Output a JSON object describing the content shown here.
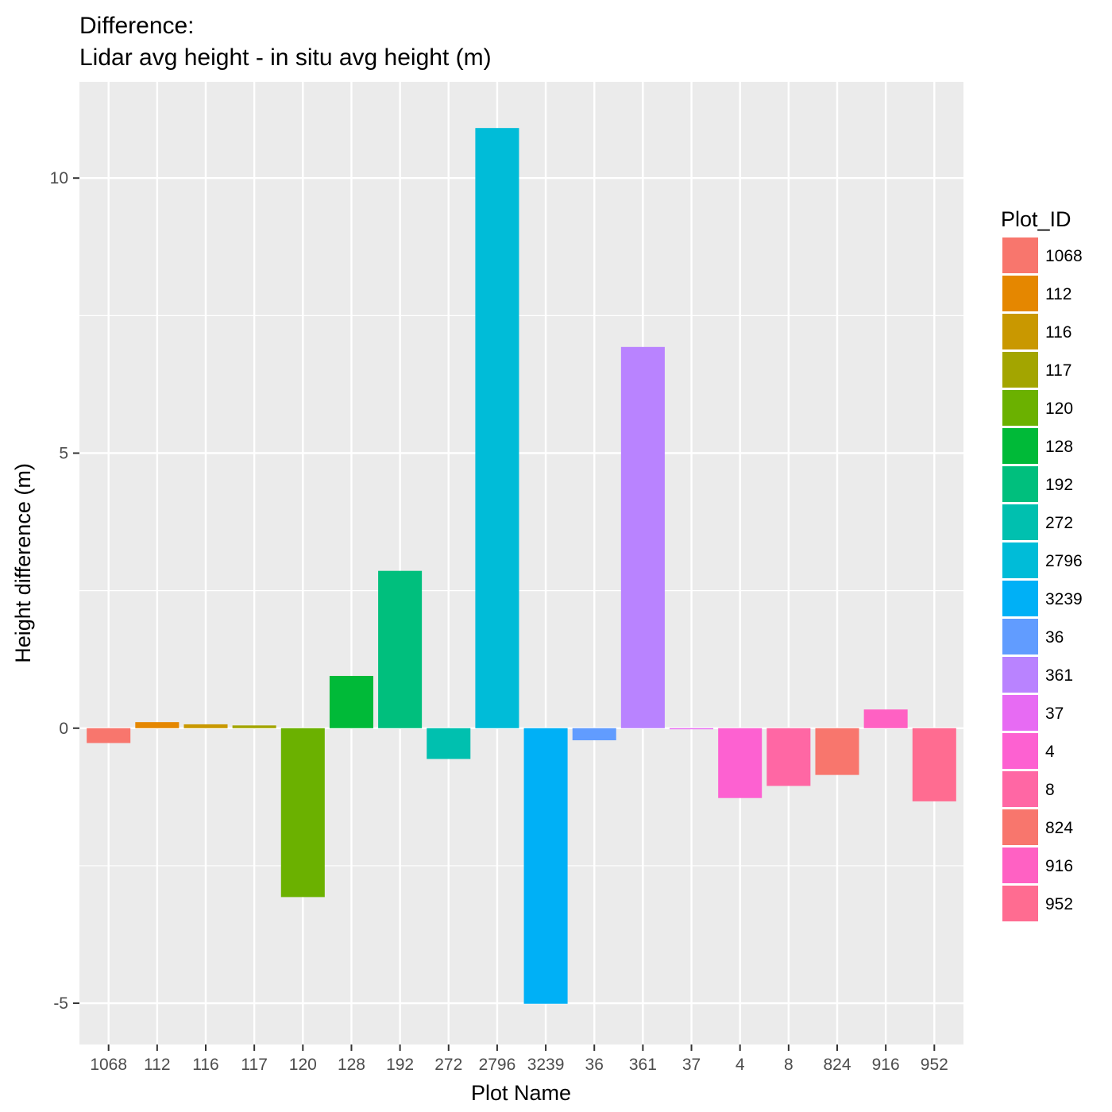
{
  "chart_data": {
    "type": "bar",
    "title": "Difference:",
    "subtitle": "Lidar avg height - in situ avg height (m)",
    "xlabel": "Plot Name",
    "ylabel": "Height difference (m)",
    "ylim": [
      -5.75,
      11.75
    ],
    "yticks": [
      -5,
      0,
      5,
      10
    ],
    "ytick_labels": [
      "-5",
      "0",
      "5",
      "10"
    ],
    "grid": true,
    "legend": {
      "title": "Plot_ID",
      "position": "right"
    },
    "categories": [
      "1068",
      "112",
      "116",
      "117",
      "120",
      "128",
      "192",
      "272",
      "2796",
      "3239",
      "36",
      "361",
      "37",
      "4",
      "8",
      "824",
      "916",
      "952"
    ],
    "values": [
      -0.27,
      0.11,
      0.07,
      0.05,
      -3.07,
      0.95,
      2.86,
      -0.56,
      10.91,
      -5.01,
      -0.22,
      6.93,
      -0.02,
      -1.27,
      -1.05,
      -0.85,
      0.34,
      -1.33
    ],
    "colors": [
      "#F8766D",
      "#E58700",
      "#C99800",
      "#A3A500",
      "#6BB100",
      "#00BA38",
      "#00BF7D",
      "#00C0AF",
      "#00BCD8",
      "#00B0F6",
      "#619CFF",
      "#B983FF",
      "#E76BF3",
      "#FD61D1",
      "#FF67A4",
      "#F8766D",
      "#FF61C3",
      "#FF6C91"
    ]
  }
}
